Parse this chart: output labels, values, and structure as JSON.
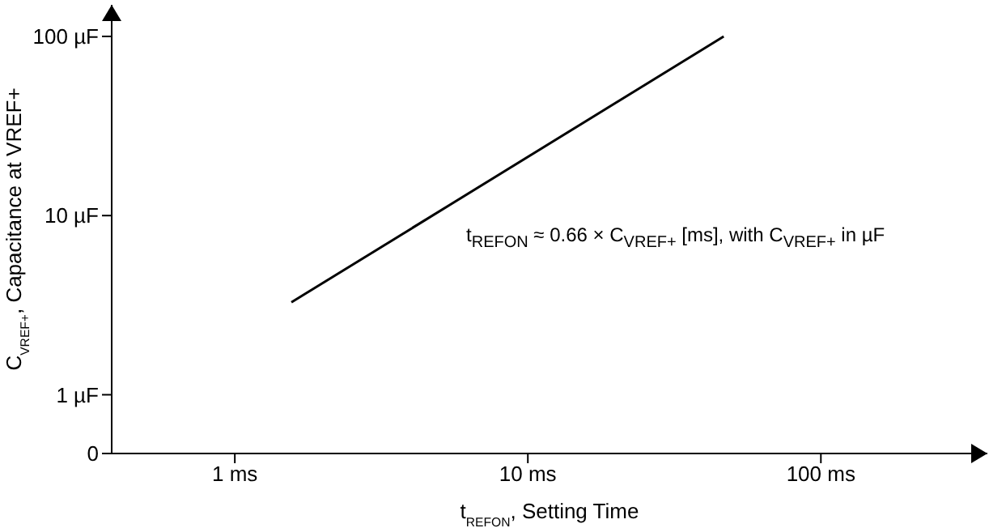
{
  "chart_data": {
    "type": "line",
    "xlabel": "t$_{REFON}$, Setting Time",
    "ylabel": "C$_{VREF+}$, Capacitance at VREF+",
    "annotations": [
      "t$_{REFON}$ ≈ 0.66 × C$_{VREF+}$ [ms], with C$_{VREF+}$ in µF"
    ],
    "log": "xy",
    "marker": "none",
    "xlim": [
      0.38,
      370
    ],
    "ylim": [
      0.47,
      150
    ],
    "xticks": [
      {
        "value": 1,
        "label": "1 ms"
      },
      {
        "value": 10,
        "label": "10 ms"
      },
      {
        "value": 100,
        "label": "100 ms"
      }
    ],
    "yticks": [
      {
        "value": 0.47,
        "label": "0"
      },
      {
        "value": 1,
        "label": "1 µF"
      },
      {
        "value": 10,
        "label": "10 µF"
      },
      {
        "value": 100,
        "label": "100 µF"
      }
    ],
    "series": [
      {
        "color": "#000000",
        "x": [
          1.56,
          46.6
        ],
        "values": [
          3.28,
          100
        ]
      }
    ]
  }
}
